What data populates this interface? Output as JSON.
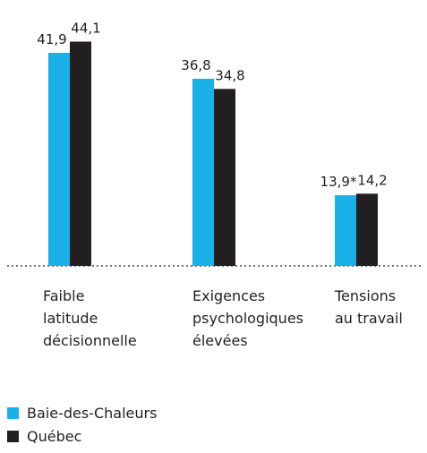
{
  "chart_data": {
    "type": "bar",
    "categories": [
      "Faible\nlatitude\ndécisionnelle",
      "Exigences\npsychologiques\nélevées",
      "Tensions\nau travail"
    ],
    "series": [
      {
        "name": "Baie-des-Chaleurs",
        "color": "#1ab0e8",
        "values": [
          41.9,
          36.8,
          13.9
        ],
        "value_labels": [
          "41,9",
          "36,8",
          "13,9*"
        ]
      },
      {
        "name": "Québec",
        "color": "#231f20",
        "values": [
          44.1,
          34.8,
          14.2
        ],
        "value_labels": [
          "44,1",
          "34,8",
          "14,2"
        ]
      }
    ],
    "legend": "bottom-left"
  }
}
